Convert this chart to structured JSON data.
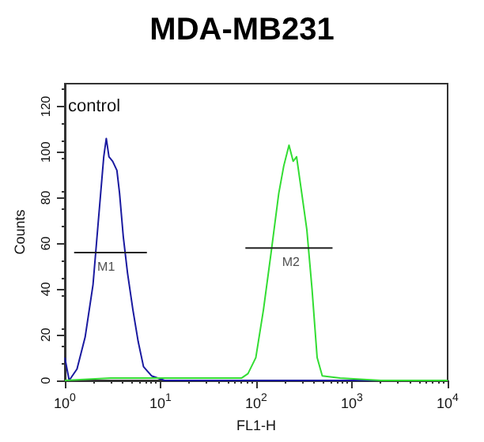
{
  "chart_data": {
    "type": "line",
    "title": "MDA-MB231",
    "xlabel": "FL1-H",
    "ylabel": "Counts",
    "log": "x",
    "grid": false,
    "marker": "none",
    "line_style": "solid",
    "xlim": [
      1,
      10000
    ],
    "xticks": [
      {
        "value": 1,
        "label": "10$^{0}$"
      },
      {
        "value": 10,
        "label": "10$^{1}$"
      },
      {
        "value": 100,
        "label": "10$^{2}$"
      },
      {
        "value": 1000,
        "label": "10$^{3}$"
      },
      {
        "value": 10000,
        "label": "10$^{4}$"
      }
    ],
    "ylim": [
      0,
      130
    ],
    "yticks": [
      0,
      20,
      40,
      60,
      80,
      100,
      120
    ],
    "annotations": [
      "control",
      {
        "text": "M1",
        "x": 2.7,
        "y": 56
      },
      {
        "text": "M2",
        "x": 230,
        "y": 58
      }
    ],
    "series": [
      {
        "color": "#1a1aa0",
        "x": [
          1,
          1.11,
          1.34,
          1.63,
          1.97,
          2.24,
          2.55,
          2.71,
          2.89,
          3.16,
          3.5,
          3.73,
          4.08,
          4.52,
          5.14,
          5.84,
          6.64,
          8.05,
          11,
          30,
          100,
          300,
          1000,
          10000
        ],
        "values": [
          10,
          0,
          5,
          19,
          42,
          70,
          98,
          106,
          98,
          96,
          92,
          82,
          63,
          47,
          31,
          17,
          6,
          2,
          0,
          0,
          0,
          0,
          0,
          0
        ]
      },
      {
        "color": "#33dd33",
        "x": [
          1,
          3,
          10,
          30,
          70,
          82,
          99,
          119,
          143,
          172,
          194,
          220,
          243,
          264,
          299,
          338,
          383,
          433,
          490,
          753,
          2000,
          10000
        ],
        "values": [
          0,
          1,
          1,
          1,
          1,
          3,
          10,
          31,
          56,
          82,
          94,
          103,
          96,
          98,
          82,
          66,
          40,
          10,
          2,
          1,
          0,
          0
        ]
      },
      {
        "color": "#222222",
        "x": [
          1.25,
          7.2
        ],
        "values": [
          56,
          56
        ]
      },
      {
        "color": "#222222",
        "x": [
          77,
          627
        ],
        "values": [
          58,
          58
        ]
      }
    ]
  }
}
